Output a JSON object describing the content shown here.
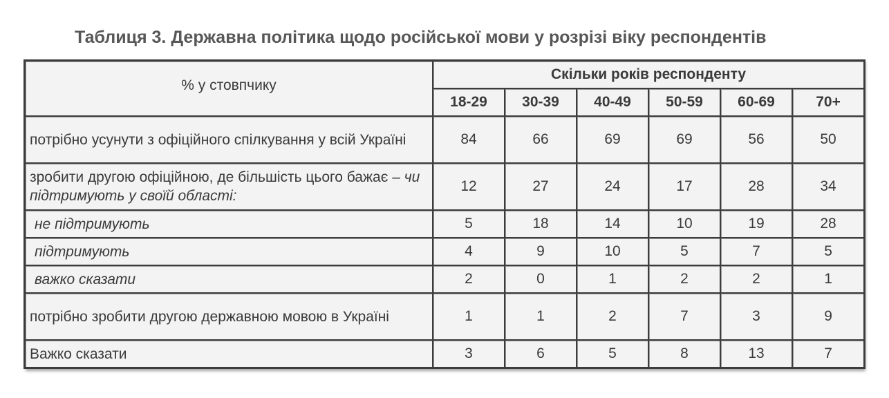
{
  "title": "Таблиця 3. Державна політика щодо російської мови у розрізі віку респондентів",
  "table": {
    "corner_label": "% у стовпчику",
    "group_header": "Скільки років респонденту",
    "age_groups": [
      "18-29",
      "30-39",
      "40-49",
      "50-59",
      "60-69",
      "70+"
    ],
    "rows": [
      {
        "label": "потрібно усунути з офіційного спілкування у всій Україні",
        "label_italic": "",
        "values": [
          "84",
          "66",
          "69",
          "69",
          "56",
          "50"
        ]
      },
      {
        "label": "зробити другою офіційною, де більшість цього бажає – ",
        "label_italic": "чи підтримують у своїй області:",
        "values": [
          "12",
          "27",
          "24",
          "17",
          "28",
          "34"
        ]
      },
      {
        "label": "не підтримують",
        "label_italic": "",
        "values": [
          "5",
          "18",
          "14",
          "10",
          "19",
          "28"
        ]
      },
      {
        "label": "підтримують",
        "label_italic": "",
        "values": [
          "4",
          "9",
          "10",
          "5",
          "7",
          "5"
        ]
      },
      {
        "label": "важко сказати",
        "label_italic": "",
        "values": [
          "2",
          "0",
          "1",
          "2",
          "2",
          "1"
        ]
      },
      {
        "label": "потрібно зробити другою державною мовою в Україні",
        "label_italic": "",
        "values": [
          "1",
          "1",
          "2",
          "7",
          "3",
          "9"
        ]
      },
      {
        "label": "Важко сказати",
        "label_italic": "",
        "values": [
          "3",
          "6",
          "5",
          "8",
          "13",
          "7"
        ]
      }
    ]
  }
}
